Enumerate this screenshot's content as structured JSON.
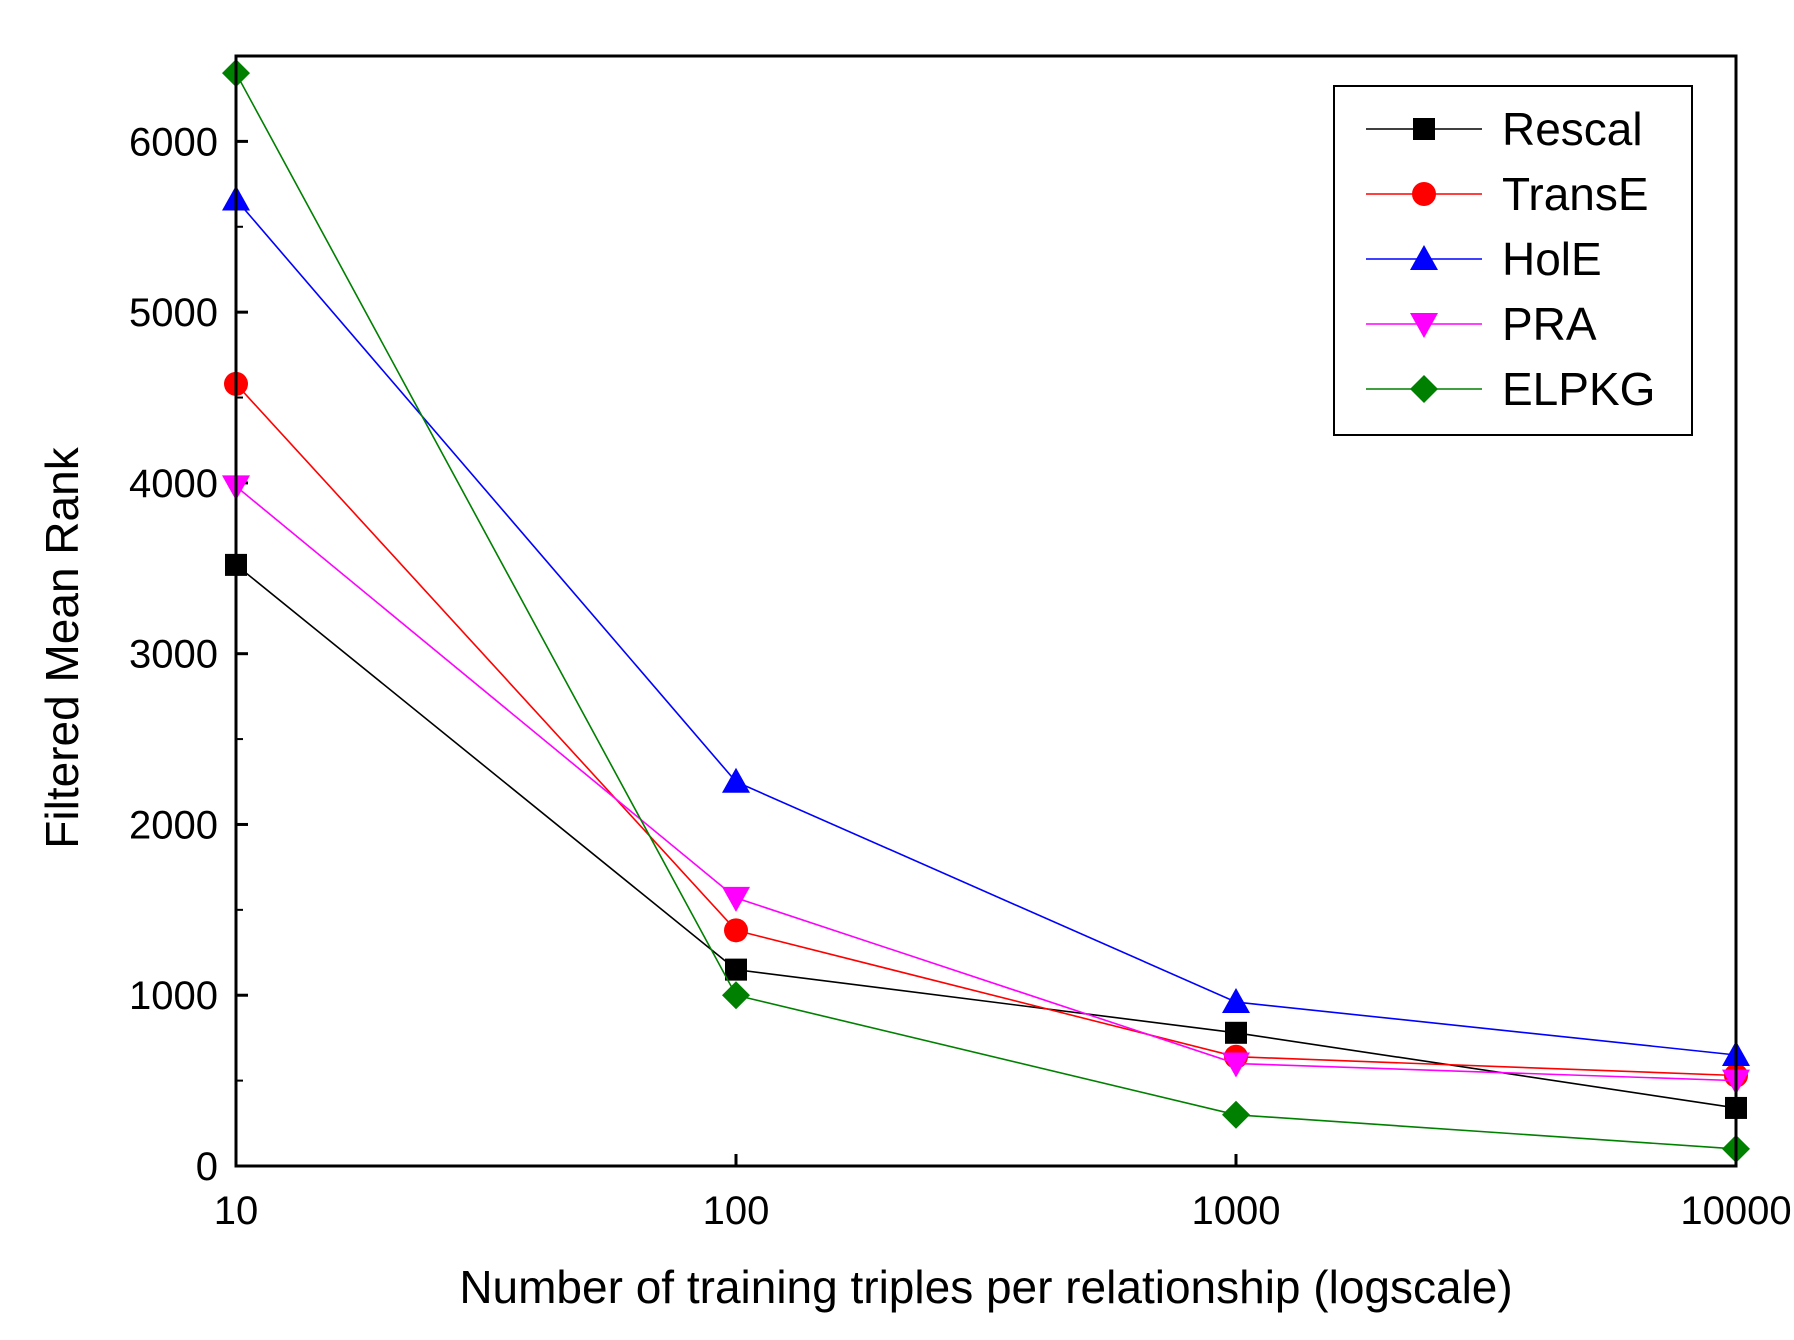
{
  "chart_data": {
    "type": "line",
    "title": "",
    "xlabel": "Number of training triples per relationship (logscale)",
    "ylabel": "Filtered Mean Rank",
    "xscale": "log",
    "x": [
      10,
      100,
      1000,
      10000
    ],
    "xticks": [
      "10",
      "100",
      "1000",
      "10000"
    ],
    "xlim": [
      10,
      10000
    ],
    "ylim": [
      0,
      6500
    ],
    "yticks": [
      "0",
      "1000",
      "2000",
      "3000",
      "4000",
      "5000",
      "6000"
    ],
    "ytick_values": [
      0,
      1000,
      2000,
      3000,
      4000,
      5000,
      6000
    ],
    "legend_position": "top-right",
    "series": [
      {
        "name": "Rescal",
        "color": "#000000",
        "marker": "square",
        "values": [
          3520,
          1150,
          780,
          340
        ]
      },
      {
        "name": "TransE",
        "color": "#ff0000",
        "marker": "circle",
        "values": [
          4580,
          1380,
          640,
          530
        ]
      },
      {
        "name": "HolE",
        "color": "#0000ff",
        "marker": "triangle-up",
        "values": [
          5660,
          2250,
          960,
          650
        ]
      },
      {
        "name": "PRA",
        "color": "#ff00ff",
        "marker": "triangle-down",
        "values": [
          3980,
          1570,
          600,
          500
        ]
      },
      {
        "name": "ELPKG",
        "color": "#008000",
        "marker": "diamond",
        "values": [
          6400,
          1000,
          300,
          100
        ]
      }
    ]
  }
}
